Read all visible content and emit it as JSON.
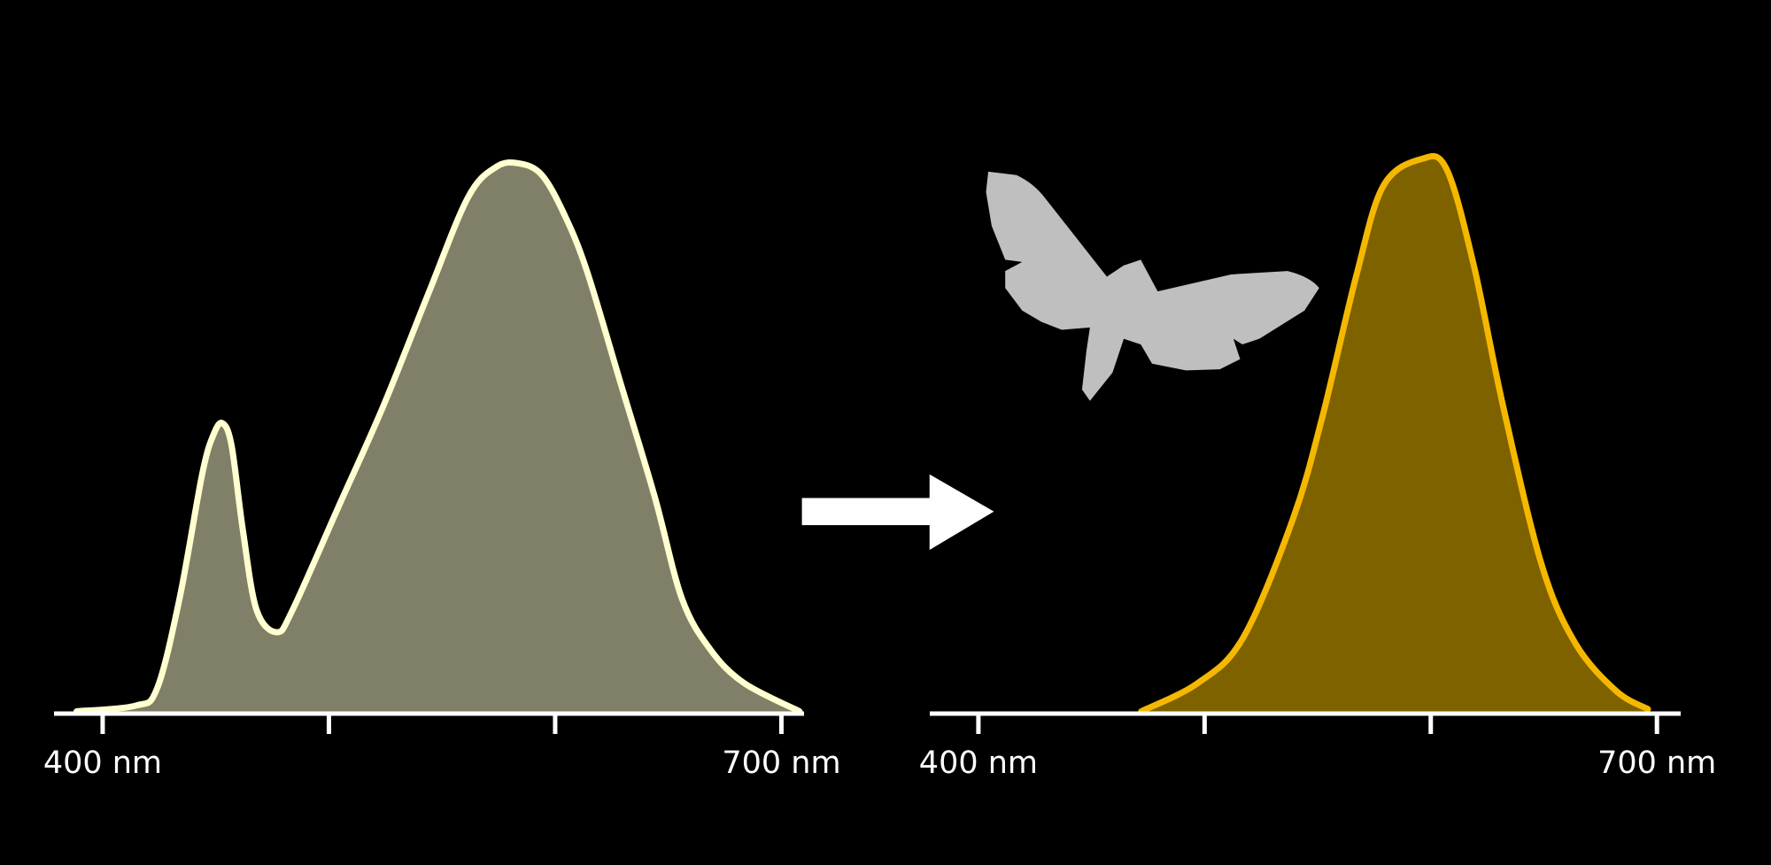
{
  "chart_data": [
    {
      "type": "area",
      "color": "#808068",
      "edge_color": "#ffffd0",
      "x": [
        388.5,
        414.5,
        424,
        434,
        444,
        449,
        453,
        457,
        462,
        468,
        477,
        484,
        504,
        524,
        544,
        561.5,
        574,
        584,
        594,
        604,
        614,
        629,
        644,
        656,
        668.5,
        683.5,
        708
      ],
      "values": [
        0.4,
        1.4,
        4.4,
        20.4,
        42.4,
        49.4,
        51.4,
        47.4,
        32.4,
        18.4,
        14.4,
        18.4,
        36.4,
        54.4,
        74.4,
        91.4,
        96.8,
        97.4,
        95.4,
        88.4,
        78.4,
        58.4,
        38.4,
        20.4,
        11.4,
        5.4,
        0.4
      ],
      "xlim": [
        378.5,
        710
      ],
      "ylim": [
        0,
        100
      ],
      "xticks": [
        {
          "value": 400,
          "label": "400 nm"
        },
        {
          "value": 500,
          "label": null
        },
        {
          "value": 600,
          "label": null
        },
        {
          "value": 700,
          "label": "700 nm"
        }
      ]
    },
    {
      "type": "area",
      "color": "#7f6200",
      "edge_color": "#f5b800",
      "x": [
        472,
        497,
        517,
        539,
        552,
        567,
        579,
        596,
        607,
        619,
        632,
        649,
        664,
        682,
        696
      ],
      "values": [
        0.4,
        5.4,
        13.4,
        34.4,
        52.4,
        77.4,
        93.4,
        98.2,
        96.4,
        79.4,
        54.4,
        26.4,
        12.4,
        4,
        0.8
      ],
      "xlim": [
        378.5,
        710.5
      ],
      "ylim": [
        0,
        100
      ],
      "xticks": [
        {
          "value": 400,
          "label": "400 nm"
        },
        {
          "value": 500,
          "label": null
        },
        {
          "value": 600,
          "label": null
        },
        {
          "value": 700,
          "label": "700 nm"
        }
      ]
    }
  ]
}
